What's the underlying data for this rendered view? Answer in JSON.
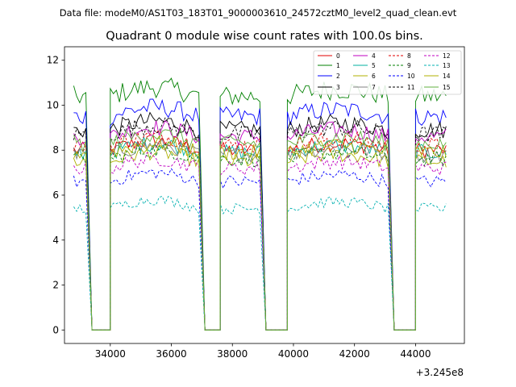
{
  "figure": {
    "suptitle": "Data file: modeM0/AS1T03_183T01_9000003610_24572cztM0_level2_quad_clean.evt"
  },
  "chart_data": {
    "type": "line",
    "title": "Quadrant 0 module wise count rates with 100.0s bins.",
    "xlabel": "",
    "ylabel": "",
    "x_offset_label": "+3.245e8",
    "xlim": [
      32500,
      45600
    ],
    "ylim": [
      -0.6,
      12.6
    ],
    "xticks": [
      34000,
      36000,
      38000,
      40000,
      42000,
      44000
    ],
    "xtick_labels": [
      "34000",
      "36000",
      "38000",
      "40000",
      "42000",
      "44000"
    ],
    "yticks": [
      0,
      2,
      4,
      6,
      8,
      10,
      12
    ],
    "ytick_labels": [
      "0",
      "2",
      "4",
      "6",
      "8",
      "10",
      "12"
    ],
    "legend_position": "top-right",
    "segments": [
      [
        32800,
        33200
      ],
      [
        34000,
        36900
      ],
      [
        37600,
        38900
      ],
      [
        39800,
        43100
      ],
      [
        44000,
        45000
      ]
    ],
    "gaps": [
      [
        33200,
        34000
      ],
      [
        36900,
        37600
      ],
      [
        38900,
        39800
      ],
      [
        43100,
        44000
      ]
    ],
    "series": [
      {
        "name": "0",
        "color": "#e00000",
        "dash": "solid",
        "level": 8.0
      },
      {
        "name": "1",
        "color": "#008000",
        "dash": "solid",
        "level": 10.4
      },
      {
        "name": "2",
        "color": "#0000ff",
        "dash": "solid",
        "level": 9.5
      },
      {
        "name": "3",
        "color": "#000000",
        "dash": "solid",
        "level": 8.9
      },
      {
        "name": "4",
        "color": "#c000c0",
        "dash": "solid",
        "level": 8.6
      },
      {
        "name": "5",
        "color": "#00b0a0",
        "dash": "solid",
        "level": 7.9
      },
      {
        "name": "6",
        "color": "#b0b000",
        "dash": "solid",
        "level": 7.5
      },
      {
        "name": "7",
        "color": "#808080",
        "dash": "solid",
        "level": 7.8
      },
      {
        "name": "8",
        "color": "#e00000",
        "dash": "dashed",
        "level": 8.2
      },
      {
        "name": "9",
        "color": "#008000",
        "dash": "dashed",
        "level": 7.6
      },
      {
        "name": "10",
        "color": "#0000ff",
        "dash": "dashed",
        "level": 6.6
      },
      {
        "name": "11",
        "color": "#000000",
        "dash": "dashed",
        "level": 8.7
      },
      {
        "name": "12",
        "color": "#c000c0",
        "dash": "dashed",
        "level": 7.2
      },
      {
        "name": "13",
        "color": "#00b0b0",
        "dash": "dashed",
        "level": 5.4
      },
      {
        "name": "14",
        "color": "#b0b000",
        "dash": "solid",
        "level": 7.9
      },
      {
        "name": "15",
        "color": "#60b040",
        "dash": "solid",
        "level": 8.3
      }
    ]
  }
}
